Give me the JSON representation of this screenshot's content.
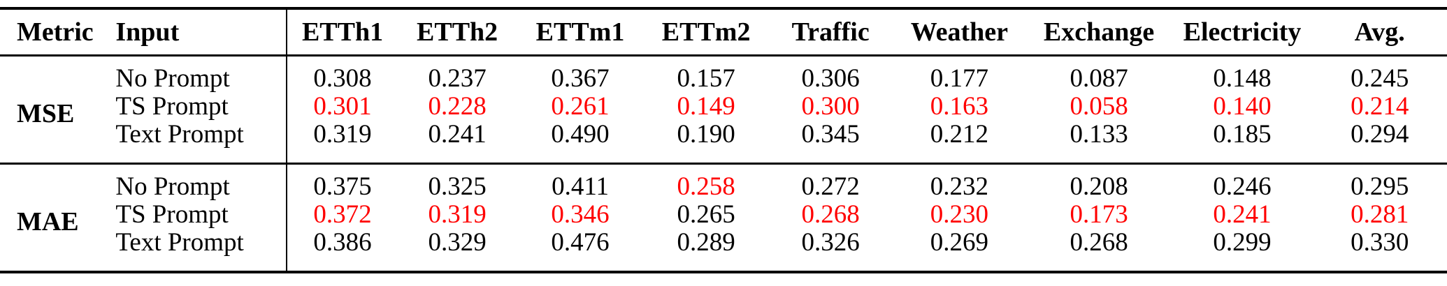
{
  "chart_data": {
    "type": "table",
    "columns": [
      "Metric",
      "Input",
      "ETTh1",
      "ETTh2",
      "ETTm1",
      "ETTm2",
      "Traffic",
      "Weather",
      "Exchange",
      "Electricity",
      "Avg."
    ],
    "groups": [
      {
        "metric": "MSE",
        "rows": [
          {
            "input": "No Prompt",
            "values": [
              "0.308",
              "0.237",
              "0.367",
              "0.157",
              "0.306",
              "0.177",
              "0.087",
              "0.148",
              "0.245"
            ],
            "red_indices": []
          },
          {
            "input": "TS Prompt",
            "values": [
              "0.301",
              "0.228",
              "0.261",
              "0.149",
              "0.300",
              "0.163",
              "0.058",
              "0.140",
              "0.214"
            ],
            "red_indices": [
              0,
              1,
              2,
              3,
              4,
              5,
              6,
              7,
              8
            ]
          },
          {
            "input": "Text Prompt",
            "values": [
              "0.319",
              "0.241",
              "0.490",
              "0.190",
              "0.345",
              "0.212",
              "0.133",
              "0.185",
              "0.294"
            ],
            "red_indices": []
          }
        ]
      },
      {
        "metric": "MAE",
        "rows": [
          {
            "input": "No Prompt",
            "values": [
              "0.375",
              "0.325",
              "0.411",
              "0.258",
              "0.272",
              "0.232",
              "0.208",
              "0.246",
              "0.295"
            ],
            "red_indices": [
              3
            ]
          },
          {
            "input": "TS Prompt",
            "values": [
              "0.372",
              "0.319",
              "0.346",
              "0.265",
              "0.268",
              "0.230",
              "0.173",
              "0.241",
              "0.281"
            ],
            "red_indices": [
              0,
              1,
              2,
              4,
              5,
              6,
              7,
              8
            ]
          },
          {
            "input": "Text Prompt",
            "values": [
              "0.386",
              "0.329",
              "0.476",
              "0.289",
              "0.326",
              "0.269",
              "0.268",
              "0.299",
              "0.330"
            ],
            "red_indices": []
          }
        ]
      }
    ]
  },
  "colors": {
    "highlight": "#ff0000",
    "text": "#000000",
    "rule": "#000000",
    "background": "#ffffff"
  }
}
